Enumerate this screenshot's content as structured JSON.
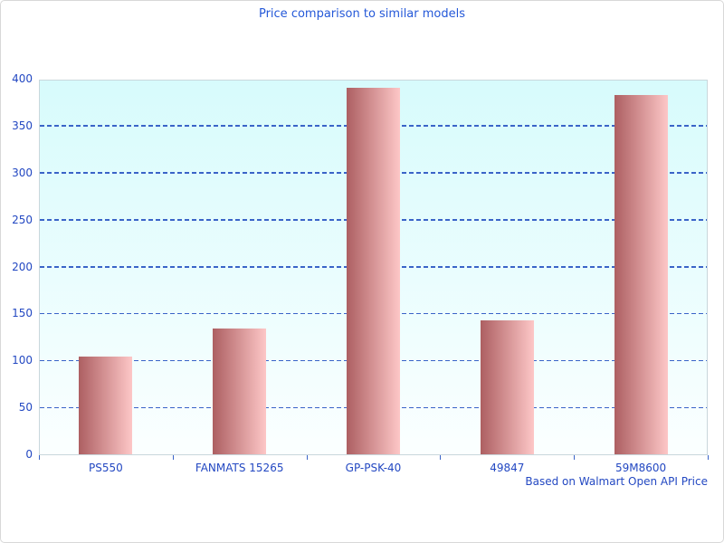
{
  "chart_data": {
    "type": "bar",
    "title": "Price comparison to similar models",
    "categories": [
      "PS550",
      "FANMATS 15265",
      "GP-PSK-40",
      "49847",
      "59M8600"
    ],
    "values": [
      104,
      134,
      390,
      143,
      383
    ],
    "xlabel": "",
    "ylabel": "",
    "ylim": [
      0,
      400
    ],
    "yticks": [
      0,
      50,
      100,
      150,
      200,
      250,
      300,
      350,
      400
    ],
    "grid": "horizontal dashed lines at every 50, none at 0 and 400",
    "legend": "none",
    "annotation": "Based on Walmart Open API Price",
    "annotation_position": "bottom-right"
  },
  "colors": {
    "title_text": "#2458d8",
    "axis_text": "#2348c2",
    "gridline": "#3a64c8",
    "bar_gradient_dark": "#ad5f62",
    "bar_gradient_light": "#fdc7c7",
    "plot_bg_top": "#d7fbfc",
    "plot_bg_bottom": "#fbffff",
    "plot_border": "#c9d7dc",
    "page_border": "#d8d8d8"
  }
}
